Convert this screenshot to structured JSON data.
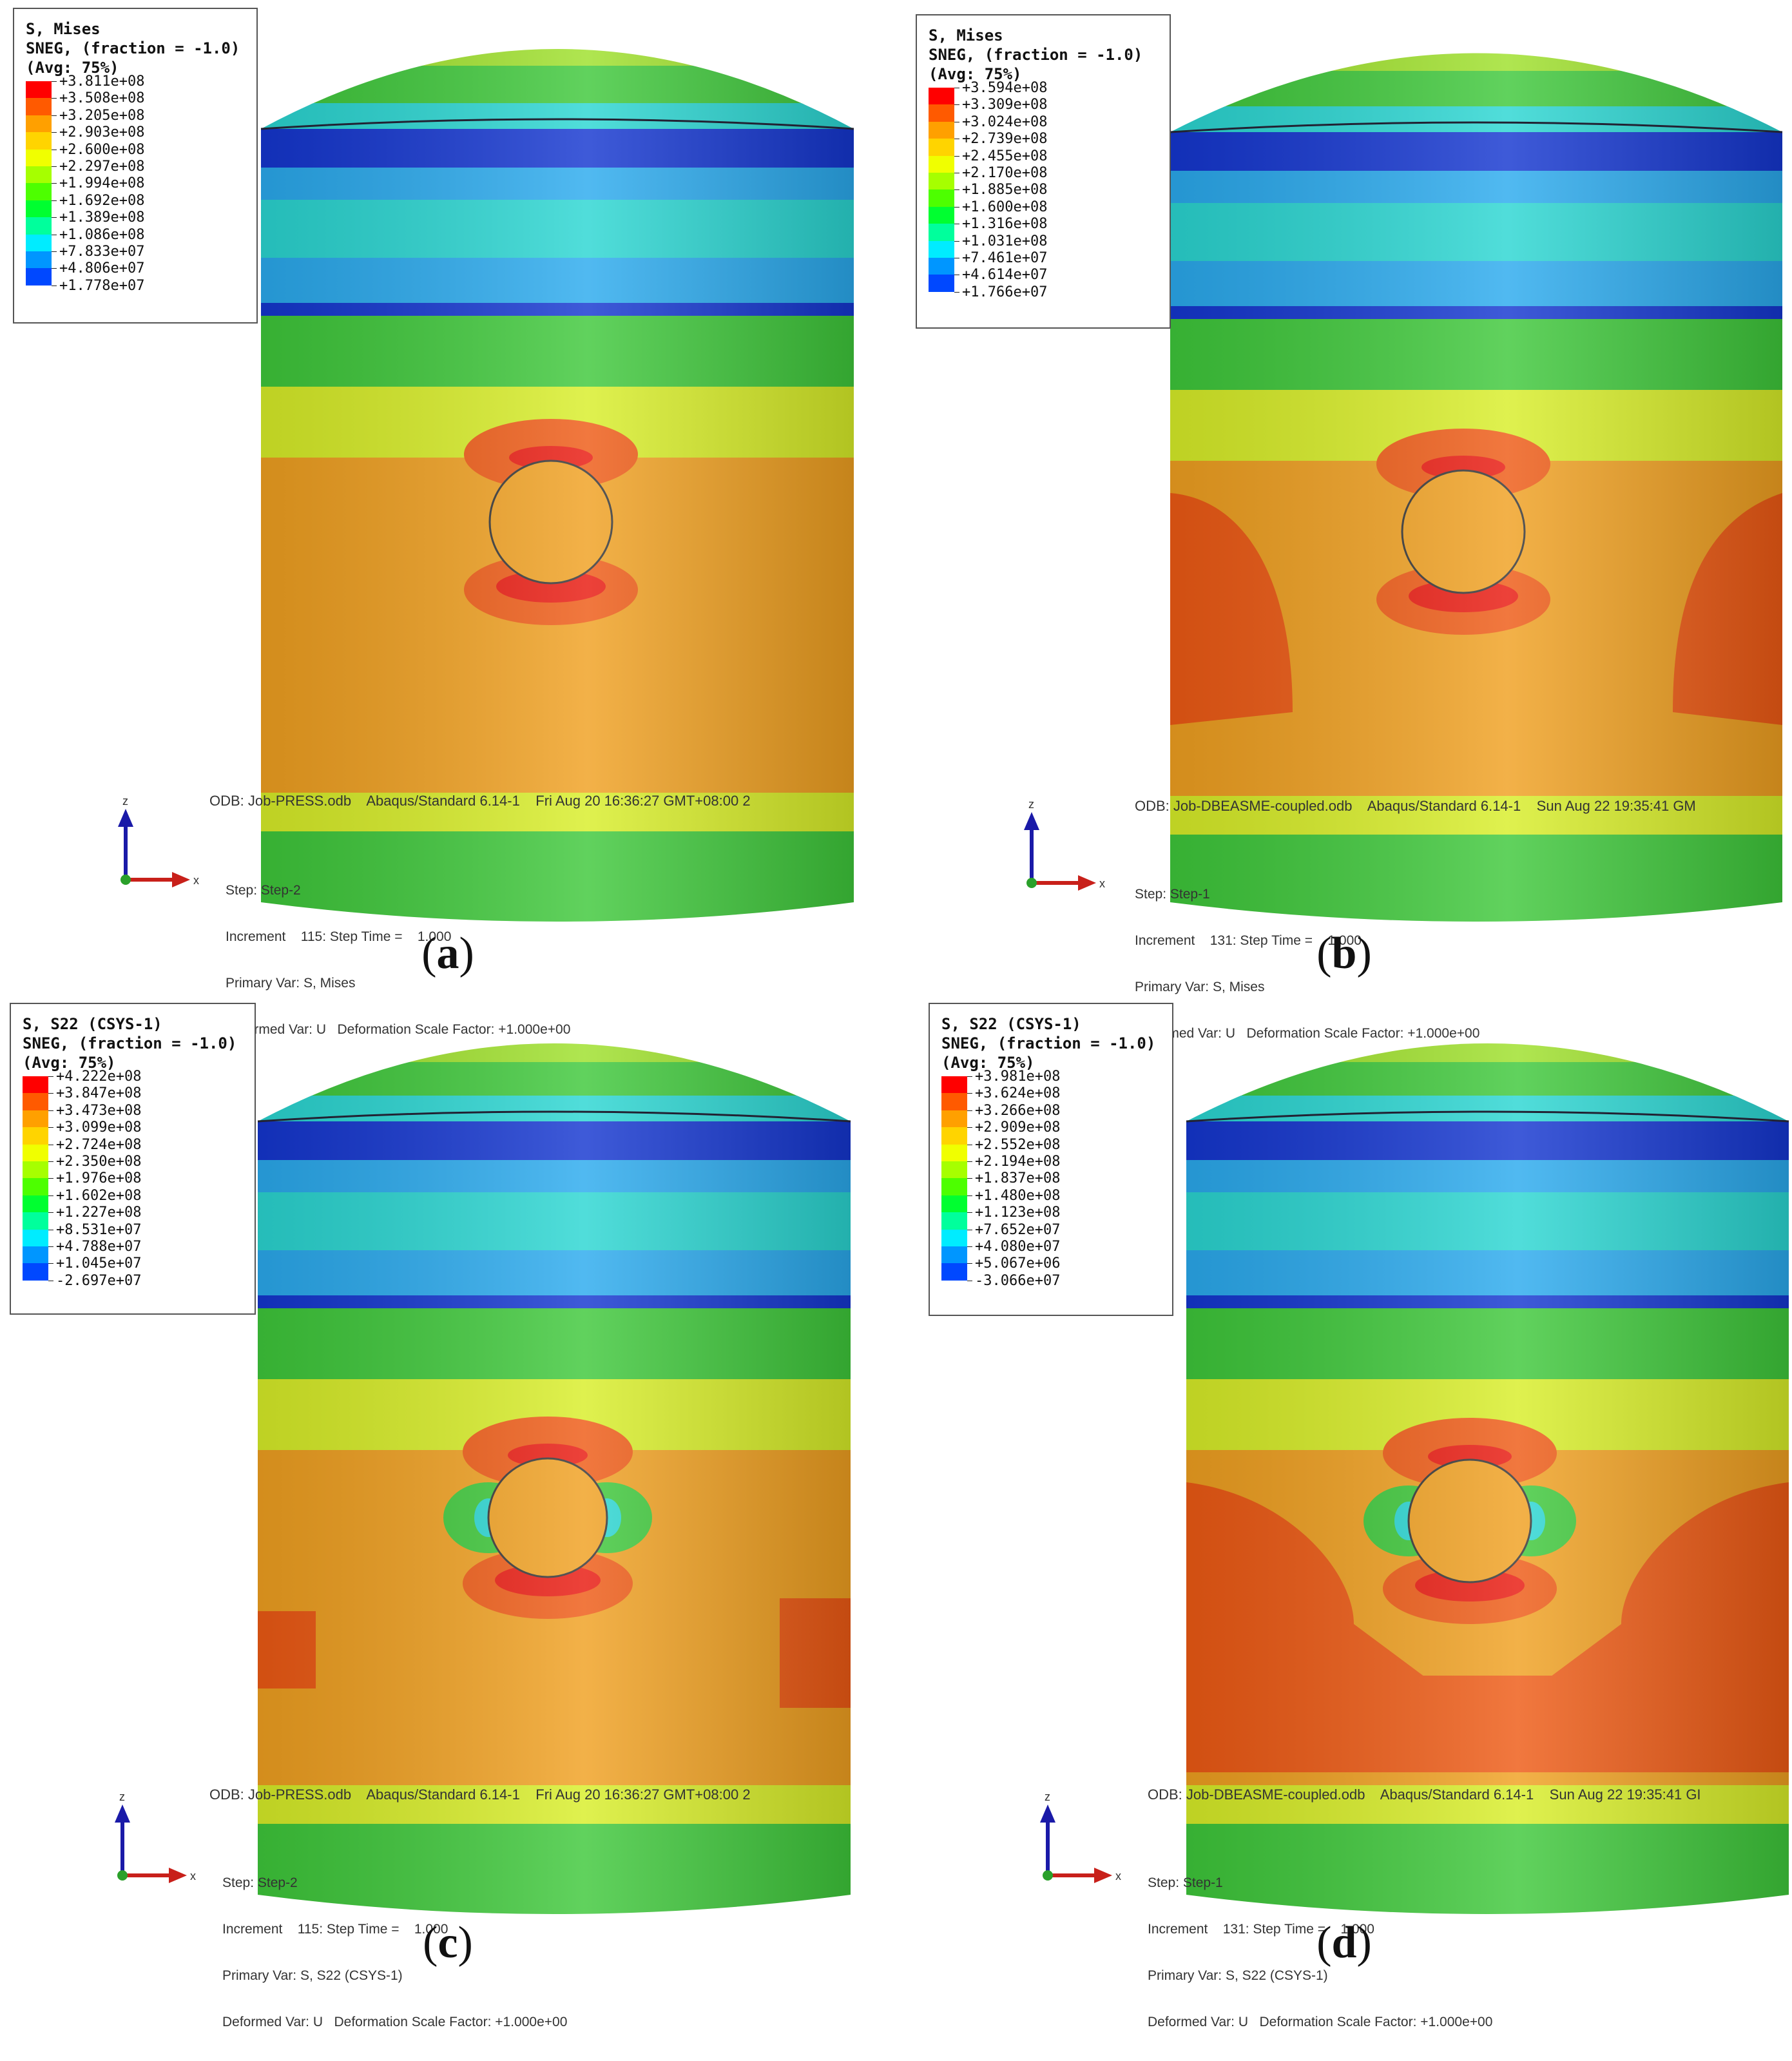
{
  "panels": [
    {
      "id": "a",
      "caption": "a",
      "legend": {
        "title": "S, Mises",
        "subtitle": "SNEG, (fraction = -1.0)",
        "avg": "(Avg: 75%)",
        "values": [
          "+3.811e+08",
          "+3.508e+08",
          "+3.205e+08",
          "+2.903e+08",
          "+2.600e+08",
          "+2.297e+08",
          "+1.994e+08",
          "+1.692e+08",
          "+1.389e+08",
          "+1.086e+08",
          "+7.833e+07",
          "+4.806e+07",
          "+1.778e+07"
        ]
      },
      "odb_line": "ODB: Job-PRESS.odb    Abaqus/Standard 6.14-1    Fri Aug 20 16:36:27 GMT+08:00 2",
      "step_lines": [
        "Step: Step-2",
        "Increment    115: Step Time =    1.000",
        "Primary Var: S, Mises",
        "Deformed Var: U   Deformation Scale Factor: +1.000e+00"
      ],
      "axis_labels": {
        "z": "z",
        "x": "x"
      }
    },
    {
      "id": "b",
      "caption": "b",
      "legend": {
        "title": "S, Mises",
        "subtitle": "SNEG, (fraction = -1.0)",
        "avg": "(Avg: 75%)",
        "values": [
          "+3.594e+08",
          "+3.309e+08",
          "+3.024e+08",
          "+2.739e+08",
          "+2.455e+08",
          "+2.170e+08",
          "+1.885e+08",
          "+1.600e+08",
          "+1.316e+08",
          "+1.031e+08",
          "+7.461e+07",
          "+4.614e+07",
          "+1.766e+07"
        ]
      },
      "odb_line": "ODB: Job-DBEASME-coupled.odb    Abaqus/Standard 6.14-1    Sun Aug 22 19:35:41 GM",
      "step_lines": [
        "Step: Step-1",
        "Increment    131: Step Time =    1.000",
        "Primary Var: S, Mises",
        "Deformed Var: U   Deformation Scale Factor: +1.000e+00"
      ],
      "axis_labels": {
        "z": "z",
        "x": "x"
      }
    },
    {
      "id": "c",
      "caption": "c",
      "legend": {
        "title": "S, S22 (CSYS-1)",
        "subtitle": "SNEG, (fraction = -1.0)",
        "avg": "(Avg: 75%)",
        "values": [
          "+4.222e+08",
          "+3.847e+08",
          "+3.473e+08",
          "+3.099e+08",
          "+2.724e+08",
          "+2.350e+08",
          "+1.976e+08",
          "+1.602e+08",
          "+1.227e+08",
          "+8.531e+07",
          "+4.788e+07",
          "+1.045e+07",
          "-2.697e+07"
        ]
      },
      "odb_line": "ODB: Job-PRESS.odb    Abaqus/Standard 6.14-1    Fri Aug 20 16:36:27 GMT+08:00 2",
      "step_lines": [
        "Step: Step-2",
        "Increment    115: Step Time =    1.000",
        "Primary Var: S, S22 (CSYS-1)",
        "Deformed Var: U   Deformation Scale Factor: +1.000e+00"
      ],
      "axis_labels": {
        "z": "z",
        "x": "x"
      }
    },
    {
      "id": "d",
      "caption": "d",
      "legend": {
        "title": "S, S22 (CSYS-1)",
        "subtitle": "SNEG, (fraction = -1.0)",
        "avg": "(Avg: 75%)",
        "values": [
          "+3.981e+08",
          "+3.624e+08",
          "+3.266e+08",
          "+2.909e+08",
          "+2.552e+08",
          "+2.194e+08",
          "+1.837e+08",
          "+1.480e+08",
          "+1.123e+08",
          "+7.652e+07",
          "+4.080e+07",
          "+5.067e+06",
          "-3.066e+07"
        ]
      },
      "odb_line": "ODB: Job-DBEASME-coupled.odb    Abaqus/Standard 6.14-1    Sun Aug 22 19:35:41 GI",
      "step_lines": [
        "Step: Step-1",
        "Increment    131: Step Time =    1.000",
        "Primary Var: S, S22 (CSYS-1)",
        "Deformed Var: U   Deformation Scale Factor: +1.000e+00"
      ],
      "axis_labels": {
        "z": "z",
        "x": "x"
      }
    }
  ],
  "legend_colors": [
    "#ff0000",
    "#ff5a00",
    "#ffa000",
    "#ffd400",
    "#f0ff00",
    "#a6ff00",
    "#4dff00",
    "#00ff30",
    "#00ff9c",
    "#00ecff",
    "#0096ff",
    "#0048ff",
    "#0000ff"
  ],
  "contour_colors": {
    "red": "#e8180e",
    "redorange": "#ee5a14",
    "orange": "#f0a020",
    "yellow": "#d8ee28",
    "lime": "#9ee02a",
    "green": "#3ec83a",
    "cyan": "#2ad6d2",
    "lightblue": "#2aaaee",
    "blue": "#1a55e6",
    "darkblue": "#1436d0"
  }
}
